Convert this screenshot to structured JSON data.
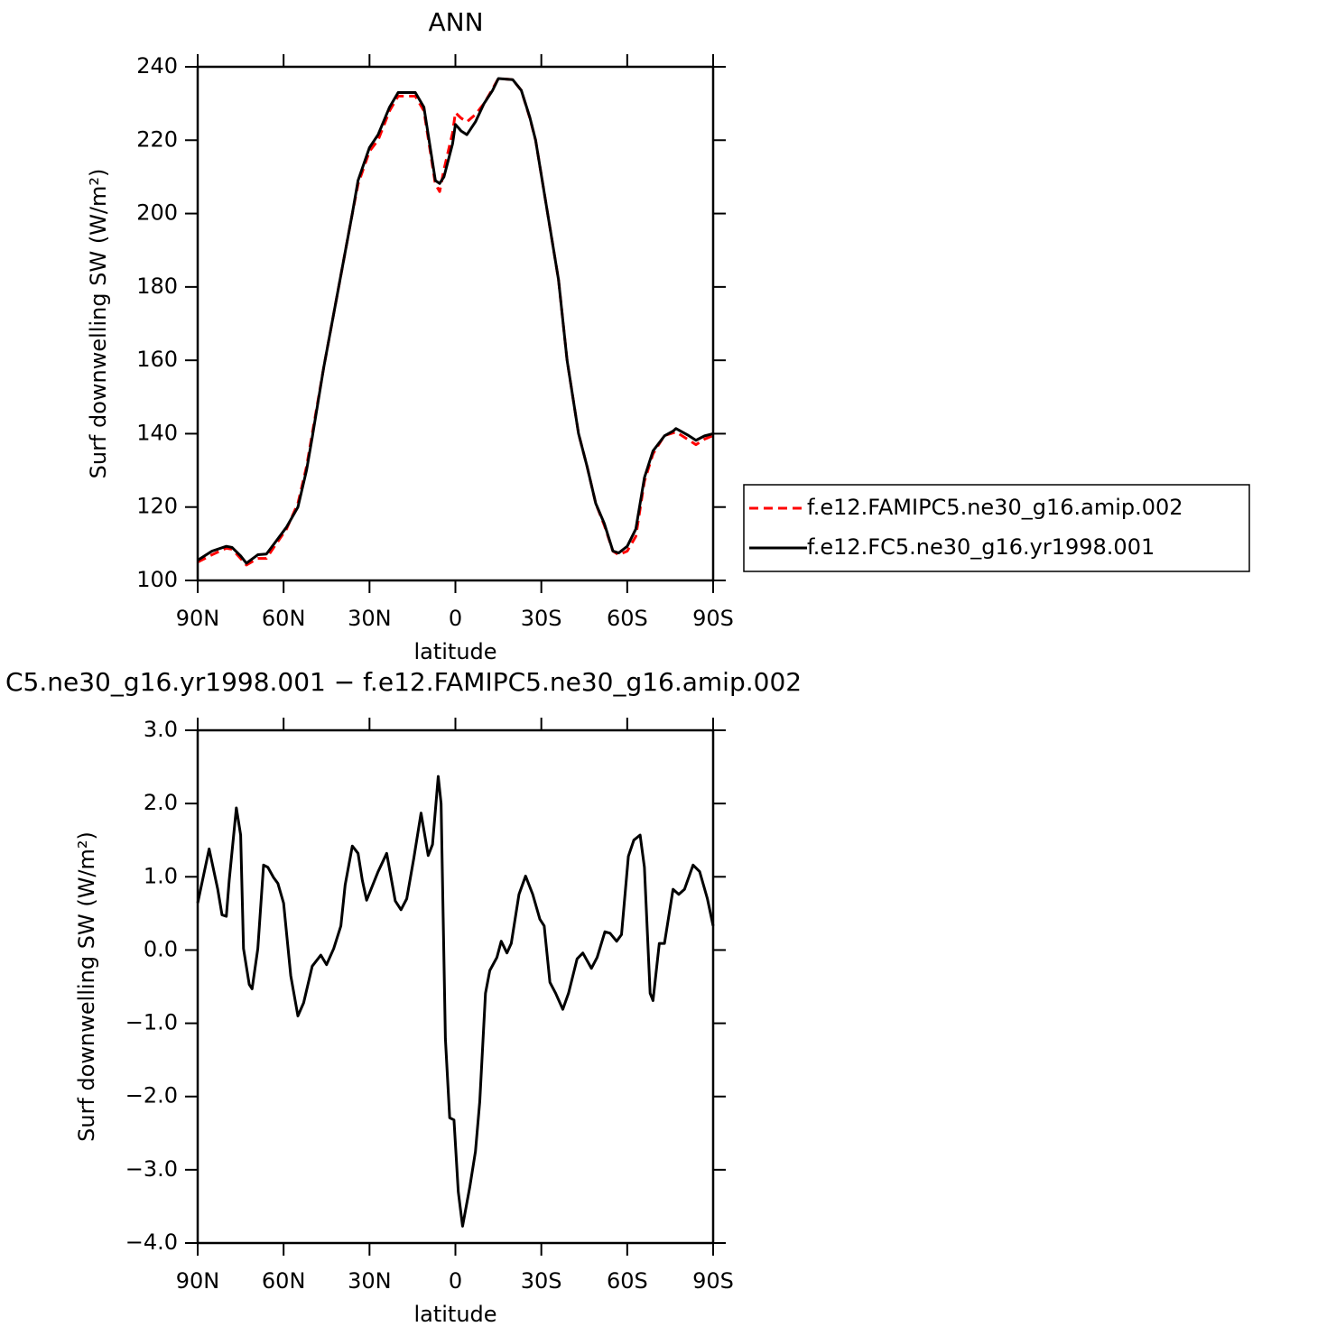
{
  "chart_data": [
    {
      "type": "line",
      "title": "ANN",
      "xlabel": "latitude",
      "ylabel": "Surf downwelling SW (W/m²)",
      "xlim": [
        90,
        -90
      ],
      "xticks": [
        {
          "value": 90,
          "label": "90N"
        },
        {
          "value": 60,
          "label": "60N"
        },
        {
          "value": 30,
          "label": "30N"
        },
        0,
        {
          "value": -30,
          "label": "30S"
        },
        {
          "value": -60,
          "label": "60S"
        },
        {
          "value": -90,
          "label": "90S"
        }
      ],
      "ylim": [
        100,
        240
      ],
      "yticks": [
        100,
        120,
        140,
        160,
        180,
        200,
        220,
        240
      ],
      "legend": "right",
      "x": [
        90,
        85,
        80,
        78,
        75,
        73,
        69,
        66,
        63,
        59,
        55,
        52,
        50,
        46,
        41,
        36,
        34,
        30,
        27,
        23,
        20,
        16,
        14,
        11,
        9,
        7,
        5.5,
        4,
        1,
        0,
        -2,
        -4,
        -7,
        -10,
        -13,
        -15,
        -20,
        -23,
        -26,
        -28,
        -32,
        -36,
        -39,
        -43,
        -46,
        -49,
        -52,
        -55,
        -57,
        -60,
        -63,
        -66,
        -69,
        -73,
        -76,
        -77,
        -81,
        -84,
        -87,
        -90
      ],
      "series": [
        {
          "name": "f.e12.FAMIPC5.ne30_g16.amip.002",
          "color": "#ff0000",
          "dash": "dashed",
          "values": [
            105,
            107,
            108.8,
            108.5,
            106,
            104.2,
            106,
            106,
            109.5,
            114,
            121,
            131,
            140,
            158,
            179,
            200,
            208,
            217,
            220,
            228,
            232,
            232,
            232,
            228,
            218,
            208,
            206,
            212,
            222,
            227.5,
            226,
            225,
            227,
            230,
            234,
            236.8,
            236.5,
            233.6,
            226,
            220,
            201,
            182,
            160,
            140,
            131,
            121,
            115,
            108,
            107,
            108,
            112,
            127,
            134.5,
            139.5,
            140.2,
            140.5,
            138.5,
            137,
            138.5,
            139.5
          ]
        },
        {
          "name": "f.e12.FC5.ne30_g16.yr1998.001",
          "color": "#000000",
          "dash": "solid",
          "values": [
            105.5,
            108,
            109.3,
            109,
            106.7,
            104.7,
            107,
            107.2,
            110.3,
            114.5,
            120,
            130,
            139,
            158,
            179,
            200,
            209,
            218,
            221.5,
            229,
            233,
            233,
            233,
            229,
            219,
            209,
            208.2,
            210,
            219,
            224.3,
            222.5,
            221.5,
            225,
            230,
            233.6,
            236.8,
            236.5,
            233.6,
            226.2,
            220,
            201,
            182,
            160,
            140,
            131,
            121,
            115.5,
            108,
            107.5,
            109.3,
            114,
            128,
            135.3,
            139.4,
            140.7,
            141.4,
            139.7,
            138.2,
            139.4,
            140
          ]
        }
      ]
    },
    {
      "type": "line",
      "title": "C5.ne30_g16.yr1998.001 − f.e12.FAMIPC5.ne30_g16.amip.002",
      "xlabel": "latitude",
      "ylabel": "Surf downwelling SW (W/m²)",
      "xlim": [
        90,
        -90
      ],
      "xticks": [
        {
          "value": 90,
          "label": "90N"
        },
        {
          "value": 60,
          "label": "60N"
        },
        {
          "value": 30,
          "label": "30N"
        },
        0,
        {
          "value": -30,
          "label": "30S"
        },
        {
          "value": -60,
          "label": "60S"
        },
        {
          "value": -90,
          "label": "90S"
        }
      ],
      "ylim": [
        -4,
        3
      ],
      "yticks": [
        {
          "value": -4,
          "label": "−4.0"
        },
        {
          "value": -3,
          "label": "−3.0"
        },
        {
          "value": -2,
          "label": "−2.0"
        },
        {
          "value": -1,
          "label": "−1.0"
        },
        {
          "value": 0,
          "label": "0.0"
        },
        {
          "value": 1,
          "label": "1.0"
        },
        {
          "value": 2,
          "label": "2.0"
        },
        {
          "value": 3,
          "label": "3.0"
        }
      ],
      "x": [
        90,
        86,
        83,
        81.5,
        80,
        79,
        76.5,
        75,
        74,
        72,
        71,
        69,
        67,
        65.5,
        63.5,
        62,
        60,
        57.5,
        55,
        53,
        50,
        47,
        45,
        42.5,
        40,
        38.5,
        36,
        34,
        32.5,
        31,
        27,
        24,
        21,
        19,
        17,
        14.5,
        12,
        9.5,
        8,
        6,
        5,
        3.5,
        2,
        0.5,
        -1,
        -2.5,
        -5,
        -7,
        -8.5,
        -10.5,
        -12,
        -14.5,
        -16,
        -18,
        -19.5,
        -22.2,
        -24.5,
        -27,
        -29.5,
        -31,
        -33,
        -35,
        -37.5,
        -39.5,
        -42.5,
        -44.5,
        -47.5,
        -49.5,
        -52.2,
        -54,
        -56.3,
        -58,
        -60.4,
        -62.3,
        -64.5,
        -66,
        -68,
        -69,
        -71.2,
        -73,
        -76,
        -78,
        -80,
        -83,
        -85.3,
        -88,
        -90
      ],
      "series": [
        {
          "color": "#000000",
          "dash": "solid",
          "values": [
            0.64,
            1.38,
            0.83,
            0.48,
            0.46,
            0.95,
            1.94,
            1.57,
            0.02,
            -0.47,
            -0.53,
            0.02,
            1.16,
            1.13,
            0.99,
            0.91,
            0.64,
            -0.35,
            -0.9,
            -0.72,
            -0.22,
            -0.07,
            -0.2,
            0.02,
            0.33,
            0.89,
            1.42,
            1.32,
            0.95,
            0.68,
            1.07,
            1.32,
            0.67,
            0.55,
            0.7,
            1.26,
            1.87,
            1.29,
            1.44,
            2.37,
            2.0,
            -1.21,
            -2.29,
            -2.32,
            -3.3,
            -3.77,
            -3.24,
            -2.75,
            -2.07,
            -0.59,
            -0.28,
            -0.1,
            0.12,
            -0.04,
            0.09,
            0.76,
            1.01,
            0.76,
            0.42,
            0.33,
            -0.44,
            -0.59,
            -0.81,
            -0.59,
            -0.12,
            -0.04,
            -0.25,
            -0.1,
            0.25,
            0.23,
            0.12,
            0.21,
            1.28,
            1.5,
            1.57,
            1.13,
            -0.59,
            -0.69,
            0.09,
            0.09,
            0.83,
            0.76,
            0.83,
            1.16,
            1.07,
            0.7,
            0.33
          ]
        }
      ]
    }
  ]
}
